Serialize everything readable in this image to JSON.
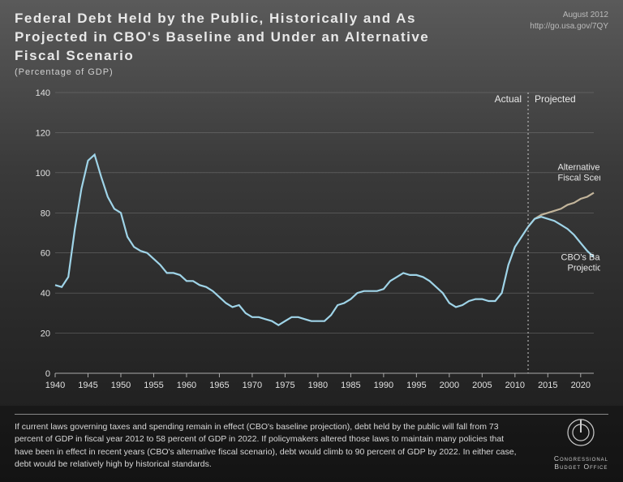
{
  "header": {
    "title": "Federal Debt Held by the Public, Historically and As Projected in CBO's Baseline and Under an Alternative Fiscal Scenario",
    "subtitle": "(Percentage of GDP)",
    "date": "August 2012",
    "url": "http://go.usa.gov/7QY"
  },
  "chart": {
    "type": "line",
    "background": "transparent",
    "xlim": [
      1940,
      2022
    ],
    "ylim": [
      0,
      140
    ],
    "ytick_step": 20,
    "xtick_step": 5,
    "xticks": [
      1940,
      1945,
      1950,
      1955,
      1960,
      1965,
      1970,
      1975,
      1980,
      1985,
      1990,
      1995,
      2000,
      2005,
      2010,
      2015,
      2020
    ],
    "yticks": [
      0,
      20,
      40,
      60,
      80,
      100,
      120,
      140
    ],
    "grid_color": "#777777",
    "axis_color": "#aaaaaa",
    "tick_fontsize": 11,
    "divider_year": 2012,
    "divider_color": "#cccccc",
    "label_actual": "Actual",
    "label_projected": "Projected",
    "annotations": {
      "alt": "Alternative Fiscal Scenario",
      "baseline": "CBO's Baseline Projection"
    },
    "series": {
      "actual": {
        "color": "#9fd4e8",
        "width": 2.2,
        "data": [
          [
            1940,
            44
          ],
          [
            1941,
            43
          ],
          [
            1942,
            48
          ],
          [
            1943,
            72
          ],
          [
            1944,
            92
          ],
          [
            1945,
            106
          ],
          [
            1946,
            109
          ],
          [
            1947,
            98
          ],
          [
            1948,
            88
          ],
          [
            1949,
            82
          ],
          [
            1950,
            80
          ],
          [
            1951,
            68
          ],
          [
            1952,
            63
          ],
          [
            1953,
            61
          ],
          [
            1954,
            60
          ],
          [
            1955,
            57
          ],
          [
            1956,
            54
          ],
          [
            1957,
            50
          ],
          [
            1958,
            50
          ],
          [
            1959,
            49
          ],
          [
            1960,
            46
          ],
          [
            1961,
            46
          ],
          [
            1962,
            44
          ],
          [
            1963,
            43
          ],
          [
            1964,
            41
          ],
          [
            1965,
            38
          ],
          [
            1966,
            35
          ],
          [
            1967,
            33
          ],
          [
            1968,
            34
          ],
          [
            1969,
            30
          ],
          [
            1970,
            28
          ],
          [
            1971,
            28
          ],
          [
            1972,
            27
          ],
          [
            1973,
            26
          ],
          [
            1974,
            24
          ],
          [
            1975,
            26
          ],
          [
            1976,
            28
          ],
          [
            1977,
            28
          ],
          [
            1978,
            27
          ],
          [
            1979,
            26
          ],
          [
            1980,
            26
          ],
          [
            1981,
            26
          ],
          [
            1982,
            29
          ],
          [
            1983,
            34
          ],
          [
            1984,
            35
          ],
          [
            1985,
            37
          ],
          [
            1986,
            40
          ],
          [
            1987,
            41
          ],
          [
            1988,
            41
          ],
          [
            1989,
            41
          ],
          [
            1990,
            42
          ],
          [
            1991,
            46
          ],
          [
            1992,
            48
          ],
          [
            1993,
            50
          ],
          [
            1994,
            49
          ],
          [
            1995,
            49
          ],
          [
            1996,
            48
          ],
          [
            1997,
            46
          ],
          [
            1998,
            43
          ],
          [
            1999,
            40
          ],
          [
            2000,
            35
          ],
          [
            2001,
            33
          ],
          [
            2002,
            34
          ],
          [
            2003,
            36
          ],
          [
            2004,
            37
          ],
          [
            2005,
            37
          ],
          [
            2006,
            36
          ],
          [
            2007,
            36
          ],
          [
            2008,
            40
          ],
          [
            2009,
            54
          ],
          [
            2010,
            63
          ],
          [
            2011,
            68
          ],
          [
            2012,
            73
          ]
        ]
      },
      "baseline": {
        "color": "#9fd4e8",
        "width": 2.2,
        "data": [
          [
            2012,
            73
          ],
          [
            2013,
            77
          ],
          [
            2014,
            78
          ],
          [
            2015,
            77
          ],
          [
            2016,
            76
          ],
          [
            2017,
            74
          ],
          [
            2018,
            72
          ],
          [
            2019,
            69
          ],
          [
            2020,
            65
          ],
          [
            2021,
            61
          ],
          [
            2022,
            58
          ]
        ]
      },
      "alternative": {
        "color": "#c2b49a",
        "width": 2.2,
        "data": [
          [
            2012,
            73
          ],
          [
            2013,
            77
          ],
          [
            2014,
            79
          ],
          [
            2015,
            80
          ],
          [
            2016,
            81
          ],
          [
            2017,
            82
          ],
          [
            2018,
            84
          ],
          [
            2019,
            85
          ],
          [
            2020,
            87
          ],
          [
            2021,
            88
          ],
          [
            2022,
            90
          ]
        ]
      }
    }
  },
  "footer": {
    "text": "If current laws governing taxes and spending remain in effect (CBO's baseline projection), debt held by the public will fall from 73 percent of GDP in fiscal year 2012 to 58 percent of GDP in 2022. If policymakers altered those laws to maintain many policies that have been in effect in recent years (CBO's alternative fiscal scenario), debt would climb to 90 percent of GDP by 2022. In either case, debt would be relatively high by historical standards.",
    "org_line1": "Congressional",
    "org_line2": "Budget Office"
  }
}
